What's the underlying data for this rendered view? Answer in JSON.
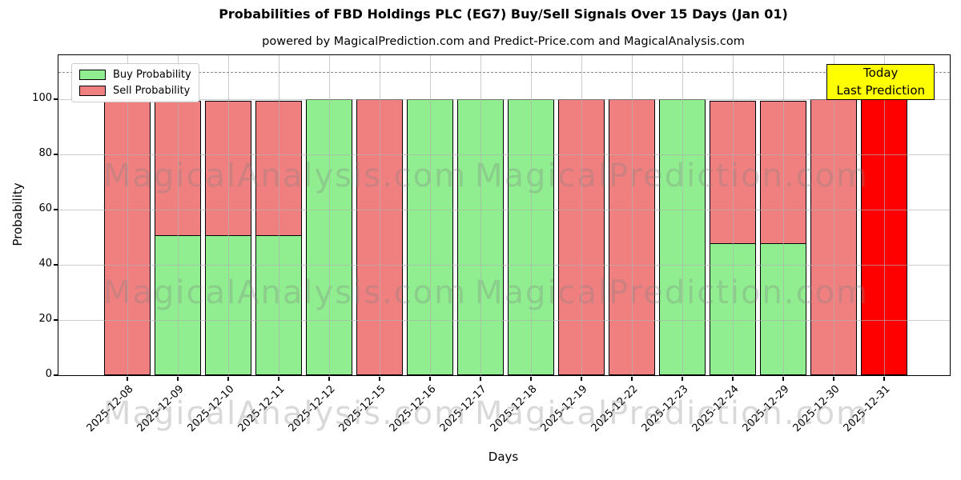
{
  "title": "Probabilities of FBD Holdings PLC (EG7) Buy/Sell Signals Over 15 Days (Jan 01)",
  "subtitle": "powered by MagicalPrediction.com and Predict-Price.com and MagicalAnalysis.com",
  "legend": {
    "buy_label": "Buy Probability",
    "sell_label": "Sell Probability"
  },
  "annotation_box": {
    "line1": "Today",
    "line2": "Last Prediction",
    "bg_color": "#ffff00"
  },
  "watermarks": {
    "left_text": "MagicalAnalysis.com",
    "right_text": "MagicalPrediction.com"
  },
  "colors": {
    "buy": "#90ee90",
    "sell": "#f08080",
    "today": "#ff0000",
    "bar_edge": "#000000",
    "grid": "#b0b0b0",
    "dashed_line": "#8a8a8a",
    "annotation_bg": "#ffff00"
  },
  "chart_data": {
    "type": "bar",
    "stacked": true,
    "title": "Probabilities of FBD Holdings PLC (EG7) Buy/Sell Signals Over 15 Days (Jan 01)",
    "xlabel": "Days",
    "ylabel": "Probability",
    "categories": [
      "2025-12-08",
      "2025-12-09",
      "2025-12-10",
      "2025-12-11",
      "2025-12-12",
      "2025-12-15",
      "2025-12-16",
      "2025-12-17",
      "2025-12-18",
      "2025-12-19",
      "2025-12-22",
      "2025-12-23",
      "2025-12-24",
      "2025-12-29",
      "2025-12-30",
      "2025-12-31"
    ],
    "series": [
      {
        "name": "Buy Probability",
        "color": "#90ee90",
        "values": [
          0,
          51,
          51,
          51,
          100,
          0,
          100,
          100,
          100,
          0,
          0,
          100,
          48,
          48,
          0,
          0
        ]
      },
      {
        "name": "Sell Probability",
        "color": "#f08080",
        "values": [
          100,
          49,
          49,
          49,
          0,
          100,
          0,
          0,
          0,
          100,
          100,
          0,
          52,
          52,
          100,
          100
        ]
      }
    ],
    "today_bar": {
      "category": "2025-12-31",
      "value": 100,
      "color": "#ff0000",
      "label": "Today / Last Prediction"
    },
    "yticks": [
      0,
      20,
      40,
      60,
      80,
      100
    ],
    "ylim": [
      0,
      116
    ],
    "dashed_line_y": 110,
    "grid": true,
    "legend_position": "upper left"
  }
}
